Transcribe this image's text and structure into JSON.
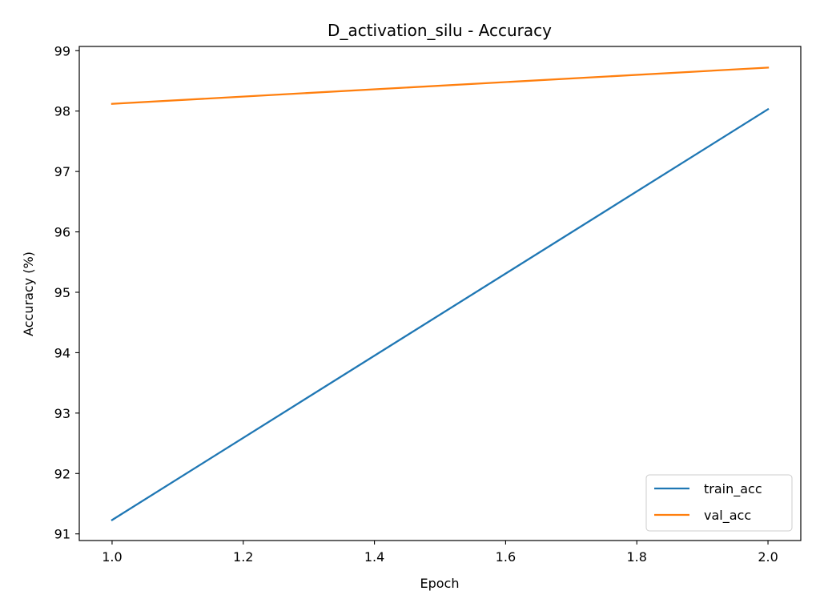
{
  "chart_data": {
    "type": "line",
    "title": "D_activation_silu - Accuracy",
    "xlabel": "Epoch",
    "ylabel": "Accuracy (%)",
    "xlim": [
      0.95,
      2.05
    ],
    "ylim": [
      90.89,
      99.07
    ],
    "xticks": [
      "1.0",
      "1.2",
      "1.4",
      "1.6",
      "1.8",
      "2.0"
    ],
    "yticks": [
      "91",
      "92",
      "93",
      "94",
      "95",
      "96",
      "97",
      "98",
      "99"
    ],
    "grid": false,
    "legend_position": "lower-right",
    "x": [
      1.0,
      2.0
    ],
    "series": [
      {
        "name": "train_acc",
        "values": [
          91.23,
          98.03
        ],
        "color": "#1f77b4"
      },
      {
        "name": "val_acc",
        "values": [
          98.12,
          98.72
        ],
        "color": "#ff7f0e"
      }
    ]
  }
}
